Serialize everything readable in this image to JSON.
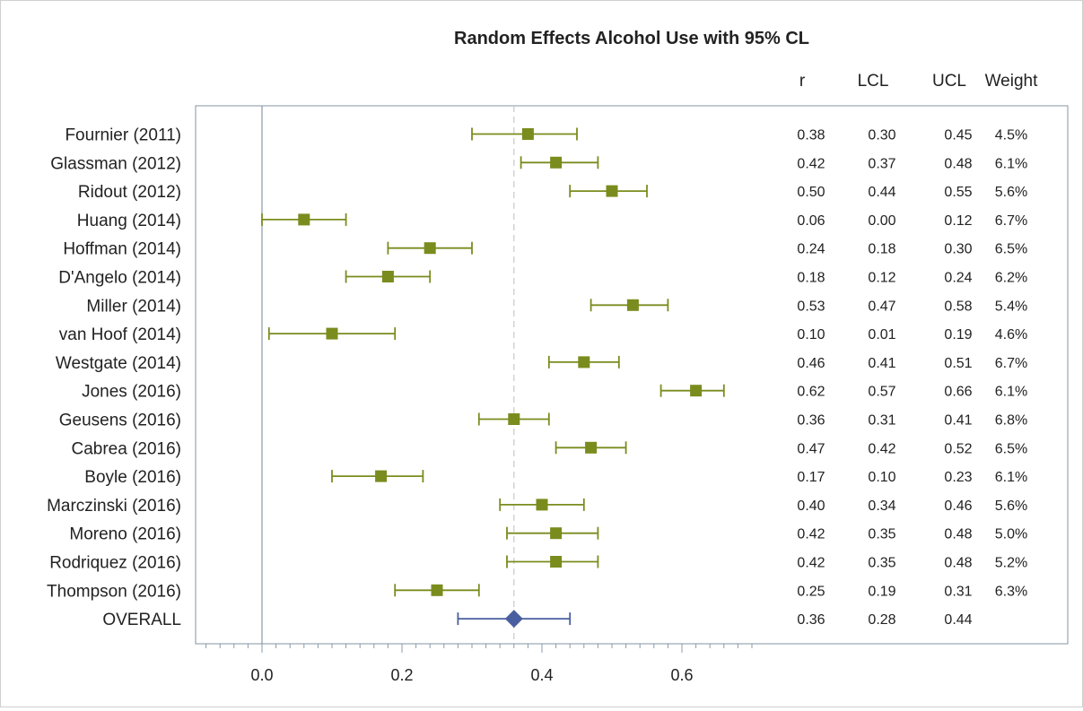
{
  "chart_data": {
    "type": "forest",
    "title": "Random Effects Alcohol Use with 95% CL",
    "columns": [
      "r",
      "LCL",
      "UCL",
      "Weight"
    ],
    "x_ticks": [
      "0.0",
      "0.2",
      "0.4",
      "0.6"
    ],
    "xlim": [
      -0.08,
      0.7
    ],
    "reference_line": 0.36,
    "studies": [
      {
        "label": "Fournier (2011)",
        "r": 0.38,
        "lcl": 0.3,
        "ucl": 0.45,
        "r_text": "0.38",
        "lcl_text": "0.30",
        "ucl_text": "0.45",
        "weight": "4.5%"
      },
      {
        "label": "Glassman (2012)",
        "r": 0.42,
        "lcl": 0.37,
        "ucl": 0.48,
        "r_text": "0.42",
        "lcl_text": "0.37",
        "ucl_text": "0.48",
        "weight": "6.1%"
      },
      {
        "label": "Ridout (2012)",
        "r": 0.5,
        "lcl": 0.44,
        "ucl": 0.55,
        "r_text": "0.50",
        "lcl_text": "0.44",
        "ucl_text": "0.55",
        "weight": "5.6%"
      },
      {
        "label": "Huang (2014)",
        "r": 0.06,
        "lcl": 0.0,
        "ucl": 0.12,
        "r_text": "0.06",
        "lcl_text": "0.00",
        "ucl_text": "0.12",
        "weight": "6.7%"
      },
      {
        "label": "Hoffman  (2014)",
        "r": 0.24,
        "lcl": 0.18,
        "ucl": 0.3,
        "r_text": "0.24",
        "lcl_text": "0.18",
        "ucl_text": "0.30",
        "weight": "6.5%"
      },
      {
        "label": "D'Angelo (2014)",
        "r": 0.18,
        "lcl": 0.12,
        "ucl": 0.24,
        "r_text": "0.18",
        "lcl_text": "0.12",
        "ucl_text": "0.24",
        "weight": "6.2%"
      },
      {
        "label": "Miller (2014)",
        "r": 0.53,
        "lcl": 0.47,
        "ucl": 0.58,
        "r_text": "0.53",
        "lcl_text": "0.47",
        "ucl_text": "0.58",
        "weight": "5.4%"
      },
      {
        "label": "van Hoof (2014)",
        "r": 0.1,
        "lcl": 0.01,
        "ucl": 0.19,
        "r_text": "0.10",
        "lcl_text": "0.01",
        "ucl_text": "0.19",
        "weight": "4.6%"
      },
      {
        "label": "Westgate (2014)",
        "r": 0.46,
        "lcl": 0.41,
        "ucl": 0.51,
        "r_text": "0.46",
        "lcl_text": "0.41",
        "ucl_text": "0.51",
        "weight": "6.7%"
      },
      {
        "label": "Jones (2016)",
        "r": 0.62,
        "lcl": 0.57,
        "ucl": 0.66,
        "r_text": "0.62",
        "lcl_text": "0.57",
        "ucl_text": "0.66",
        "weight": "6.1%"
      },
      {
        "label": "Geusens (2016)",
        "r": 0.36,
        "lcl": 0.31,
        "ucl": 0.41,
        "r_text": "0.36",
        "lcl_text": "0.31",
        "ucl_text": "0.41",
        "weight": "6.8%"
      },
      {
        "label": "Cabrea (2016)",
        "r": 0.47,
        "lcl": 0.42,
        "ucl": 0.52,
        "r_text": "0.47",
        "lcl_text": "0.42",
        "ucl_text": "0.52",
        "weight": "6.5%"
      },
      {
        "label": "Boyle (2016)",
        "r": 0.17,
        "lcl": 0.1,
        "ucl": 0.23,
        "r_text": "0.17",
        "lcl_text": "0.10",
        "ucl_text": "0.23",
        "weight": "6.1%"
      },
      {
        "label": "Marczinski (2016)",
        "r": 0.4,
        "lcl": 0.34,
        "ucl": 0.46,
        "r_text": "0.40",
        "lcl_text": "0.34",
        "ucl_text": "0.46",
        "weight": "5.6%"
      },
      {
        "label": "Moreno (2016)",
        "r": 0.42,
        "lcl": 0.35,
        "ucl": 0.48,
        "r_text": "0.42",
        "lcl_text": "0.35",
        "ucl_text": "0.48",
        "weight": "5.0%"
      },
      {
        "label": "Rodriquez (2016)",
        "r": 0.42,
        "lcl": 0.35,
        "ucl": 0.48,
        "r_text": "0.42",
        "lcl_text": "0.35",
        "ucl_text": "0.48",
        "weight": "5.2%"
      },
      {
        "label": "Thompson (2016)",
        "r": 0.25,
        "lcl": 0.19,
        "ucl": 0.31,
        "r_text": "0.25",
        "lcl_text": "0.19",
        "ucl_text": "0.31",
        "weight": "6.3%"
      }
    ],
    "overall": {
      "label": "OVERALL",
      "r": 0.36,
      "lcl": 0.28,
      "ucl": 0.44,
      "r_text": "0.36",
      "lcl_text": "0.28",
      "ucl_text": "0.44",
      "weight": ""
    },
    "colors": {
      "study": "#7a8c1e",
      "overall": "#4a5fa0",
      "reference": "#c8c8c8",
      "axis": "#8a9aaa"
    }
  }
}
